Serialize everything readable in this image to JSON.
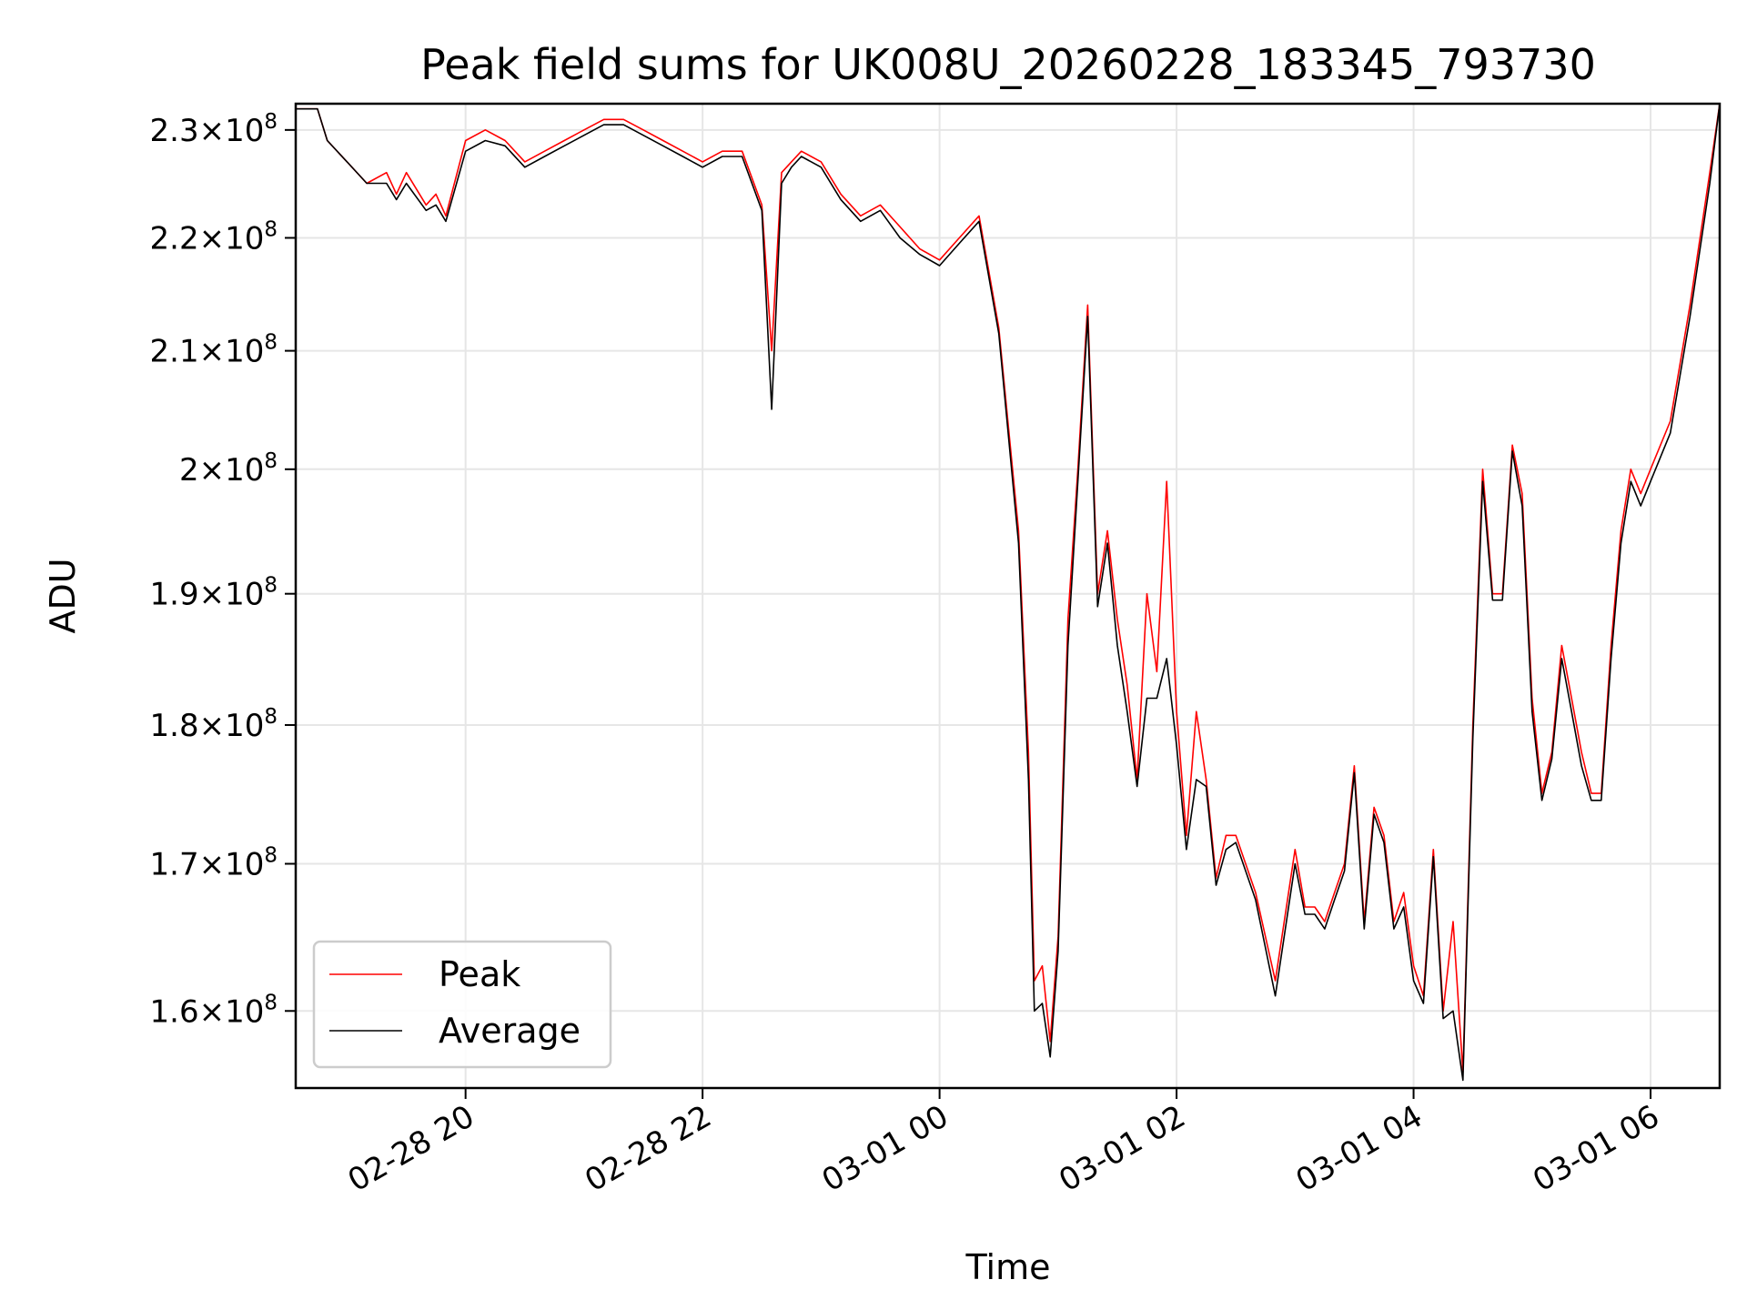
{
  "chart_data": {
    "type": "line",
    "title": "Peak field sums for UK008U_20260228_183345_793730",
    "xlabel": "Time",
    "ylabel": "ADU",
    "yscale": "log",
    "xlim": [
      "2026-02-28 18:34",
      "2026-03-01 06:35"
    ],
    "ylim": [
      155000000,
      232500000
    ],
    "grid": true,
    "legend": "lower-left",
    "x_ticks": [
      {
        "value": "2026-02-28 20:00",
        "label": "02-28 20"
      },
      {
        "value": "2026-02-28 22:00",
        "label": "02-28 22"
      },
      {
        "value": "2026-03-01 00:00",
        "label": "03-01 00"
      },
      {
        "value": "2026-03-01 02:00",
        "label": "03-01 02"
      },
      {
        "value": "2026-03-01 04:00",
        "label": "03-01 04"
      },
      {
        "value": "2026-03-01 06:00",
        "label": "03-01 06"
      }
    ],
    "y_ticks": [
      {
        "value": 160000000,
        "mantissa": "1.6",
        "exponent": "8"
      },
      {
        "value": 170000000,
        "mantissa": "1.7",
        "exponent": "8"
      },
      {
        "value": 180000000,
        "mantissa": "1.8",
        "exponent": "8"
      },
      {
        "value": 190000000,
        "mantissa": "1.9",
        "exponent": "8"
      },
      {
        "value": 200000000,
        "mantissa": "2",
        "exponent": "8"
      },
      {
        "value": 210000000,
        "mantissa": "2.1",
        "exponent": "8"
      },
      {
        "value": 220000000,
        "mantissa": "2.2",
        "exponent": "8"
      },
      {
        "value": 230000000,
        "mantissa": "2.3",
        "exponent": "8"
      }
    ],
    "times_symbol": "×",
    "tick_base": "10",
    "x": [
      "2026-02-28 18:34",
      "2026-02-28 18:45",
      "2026-02-28 18:50",
      "2026-02-28 19:00",
      "2026-02-28 19:10",
      "2026-02-28 19:20",
      "2026-02-28 19:25",
      "2026-02-28 19:30",
      "2026-02-28 19:40",
      "2026-02-28 19:45",
      "2026-02-28 19:50",
      "2026-02-28 20:00",
      "2026-02-28 20:10",
      "2026-02-28 20:20",
      "2026-02-28 20:30",
      "2026-02-28 20:40",
      "2026-02-28 20:50",
      "2026-02-28 21:00",
      "2026-02-28 21:10",
      "2026-02-28 21:20",
      "2026-02-28 21:30",
      "2026-02-28 21:40",
      "2026-02-28 21:50",
      "2026-02-28 22:00",
      "2026-02-28 22:10",
      "2026-02-28 22:20",
      "2026-02-28 22:30",
      "2026-02-28 22:35",
      "2026-02-28 22:40",
      "2026-02-28 22:45",
      "2026-02-28 22:50",
      "2026-02-28 23:00",
      "2026-02-28 23:10",
      "2026-02-28 23:20",
      "2026-02-28 23:30",
      "2026-02-28 23:40",
      "2026-02-28 23:50",
      "2026-03-01 00:00",
      "2026-03-01 00:10",
      "2026-03-01 00:20",
      "2026-03-01 00:30",
      "2026-03-01 00:40",
      "2026-03-01 00:45",
      "2026-03-01 00:48",
      "2026-03-01 00:52",
      "2026-03-01 00:56",
      "2026-03-01 01:00",
      "2026-03-01 01:05",
      "2026-03-01 01:10",
      "2026-03-01 01:15",
      "2026-03-01 01:20",
      "2026-03-01 01:25",
      "2026-03-01 01:30",
      "2026-03-01 01:35",
      "2026-03-01 01:40",
      "2026-03-01 01:45",
      "2026-03-01 01:50",
      "2026-03-01 01:55",
      "2026-03-01 02:00",
      "2026-03-01 02:05",
      "2026-03-01 02:10",
      "2026-03-01 02:15",
      "2026-03-01 02:20",
      "2026-03-01 02:25",
      "2026-03-01 02:30",
      "2026-03-01 02:40",
      "2026-03-01 02:50",
      "2026-03-01 03:00",
      "2026-03-01 03:05",
      "2026-03-01 03:10",
      "2026-03-01 03:15",
      "2026-03-01 03:20",
      "2026-03-01 03:25",
      "2026-03-01 03:30",
      "2026-03-01 03:35",
      "2026-03-01 03:40",
      "2026-03-01 03:45",
      "2026-03-01 03:50",
      "2026-03-01 03:55",
      "2026-03-01 04:00",
      "2026-03-01 04:05",
      "2026-03-01 04:10",
      "2026-03-01 04:15",
      "2026-03-01 04:20",
      "2026-03-01 04:25",
      "2026-03-01 04:30",
      "2026-03-01 04:35",
      "2026-03-01 04:40",
      "2026-03-01 04:45",
      "2026-03-01 04:50",
      "2026-03-01 04:55",
      "2026-03-01 05:00",
      "2026-03-01 05:05",
      "2026-03-01 05:10",
      "2026-03-01 05:15",
      "2026-03-01 05:20",
      "2026-03-01 05:25",
      "2026-03-01 05:30",
      "2026-03-01 05:35",
      "2026-03-01 05:40",
      "2026-03-01 05:45",
      "2026-03-01 05:50",
      "2026-03-01 05:55",
      "2026-03-01 06:00",
      "2026-03-01 06:10",
      "2026-03-01 06:20",
      "2026-03-01 06:30",
      "2026-03-01 06:35"
    ],
    "series": [
      {
        "name": "Peak",
        "color": "#ff0000",
        "values": [
          232000000,
          232000000,
          229000000,
          227000000,
          225000000,
          226000000,
          224000000,
          226000000,
          223000000,
          224000000,
          222000000,
          229000000,
          230000000,
          229000000,
          227000000,
          228000000,
          229000000,
          230000000,
          231000000,
          231000000,
          230000000,
          229000000,
          228000000,
          227000000,
          228000000,
          228000000,
          223000000,
          210000000,
          226000000,
          227000000,
          228000000,
          227000000,
          224000000,
          222000000,
          223000000,
          221000000,
          219000000,
          218000000,
          220000000,
          222000000,
          212000000,
          195000000,
          178000000,
          162000000,
          163000000,
          158000000,
          165000000,
          188000000,
          200000000,
          214000000,
          190000000,
          195000000,
          188000000,
          183000000,
          176000000,
          190000000,
          184000000,
          199000000,
          181000000,
          172000000,
          181000000,
          176000000,
          169000000,
          172000000,
          172000000,
          168000000,
          162000000,
          171000000,
          167000000,
          167000000,
          166000000,
          168000000,
          170000000,
          177000000,
          166000000,
          174000000,
          172000000,
          166000000,
          168000000,
          163000000,
          161000000,
          171000000,
          160000000,
          166000000,
          156000000,
          180000000,
          200000000,
          190000000,
          190000000,
          202000000,
          198000000,
          182000000,
          175000000,
          178000000,
          186000000,
          182000000,
          178000000,
          175000000,
          175000000,
          186000000,
          195000000,
          200000000,
          198000000,
          200000000,
          204000000,
          214000000,
          226000000,
          232500000
        ]
      },
      {
        "name": "Average",
        "color": "#000000",
        "values": [
          232000000,
          232000000,
          229000000,
          227000000,
          225000000,
          225000000,
          223500000,
          225000000,
          222500000,
          223000000,
          221500000,
          228000000,
          229000000,
          228500000,
          226500000,
          227500000,
          228500000,
          229500000,
          230500000,
          230500000,
          229500000,
          228500000,
          227500000,
          226500000,
          227500000,
          227500000,
          222500000,
          205000000,
          225000000,
          226500000,
          227500000,
          226500000,
          223500000,
          221500000,
          222500000,
          220000000,
          218500000,
          217500000,
          219500000,
          221500000,
          211500000,
          194000000,
          176000000,
          160000000,
          160500000,
          157000000,
          164000000,
          186000000,
          199000000,
          213000000,
          189000000,
          194000000,
          186000000,
          181000000,
          175500000,
          182000000,
          182000000,
          185000000,
          178500000,
          171000000,
          176000000,
          175500000,
          168500000,
          171000000,
          171500000,
          167500000,
          161000000,
          170000000,
          166500000,
          166500000,
          165500000,
          167500000,
          169500000,
          176500000,
          165500000,
          173500000,
          171500000,
          165500000,
          167000000,
          162000000,
          160500000,
          170500000,
          159500000,
          160000000,
          155500000,
          179000000,
          199000000,
          189500000,
          189500000,
          201500000,
          197000000,
          181000000,
          174500000,
          177500000,
          185000000,
          181000000,
          177000000,
          174500000,
          174500000,
          185000000,
          194000000,
          199000000,
          197000000,
          199000000,
          203000000,
          213000000,
          225000000,
          232500000
        ]
      }
    ]
  }
}
